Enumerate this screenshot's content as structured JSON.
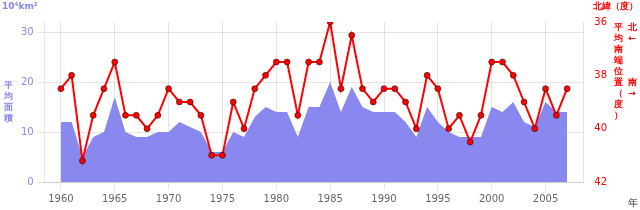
{
  "chart_data": {
    "type": "line",
    "xlabel": "年",
    "ylabel": "平均面積",
    "y2label": "平均南端位置（度）",
    "annotations": [
      "10⁴km²",
      "北緯（度）",
      "北←   南→"
    ],
    "x": [
      1960,
      1961,
      1962,
      1963,
      1964,
      1965,
      1966,
      1967,
      1968,
      1969,
      1970,
      1971,
      1972,
      1973,
      1974,
      1975,
      1976,
      1977,
      1978,
      1979,
      1980,
      1981,
      1982,
      1983,
      1984,
      1985,
      1986,
      1987,
      1988,
      1989,
      1990,
      1991,
      1992,
      1993,
      1994,
      1995,
      1996,
      1997,
      1998,
      1999,
      2000,
      2001,
      2002,
      2003,
      2004,
      2005,
      2006,
      2007
    ],
    "series": [
      {
        "type": "area",
        "color": "#8888ee",
        "values": [
          12,
          12,
          5,
          9,
          10,
          17,
          10,
          9,
          9,
          10,
          10,
          12,
          11,
          10,
          6,
          6,
          10,
          9,
          13,
          15,
          14,
          14,
          9,
          15,
          15,
          20,
          14,
          19,
          15,
          14,
          14,
          14,
          12,
          9,
          15,
          12,
          10,
          9,
          9,
          9,
          15,
          14,
          16,
          12,
          11,
          16,
          14,
          14
        ]
      },
      {
        "type": "line",
        "color": "#ff0000",
        "axis": "y2",
        "marker": "circle",
        "values": [
          38.5,
          38.0,
          41.2,
          39.5,
          38.5,
          37.5,
          39.5,
          39.5,
          40.0,
          39.5,
          38.5,
          39.0,
          39.0,
          39.5,
          41.0,
          41.0,
          39.0,
          40.0,
          38.5,
          38.0,
          37.5,
          37.5,
          39.5,
          37.5,
          37.5,
          36.0,
          38.5,
          36.5,
          38.5,
          39.0,
          38.5,
          38.5,
          39.0,
          40.0,
          38.0,
          38.5,
          40.0,
          39.5,
          40.5,
          39.5,
          37.5,
          37.5,
          38.0,
          39.0,
          40.0,
          38.5,
          39.5,
          38.5
        ]
      }
    ],
    "xlim": [
      1958.5,
      2008.5
    ],
    "xticks": [
      1960,
      1965,
      1970,
      1975,
      1980,
      1985,
      1990,
      1995,
      2000,
      2005
    ],
    "ylim": [
      0,
      32
    ],
    "yticks": [
      0,
      10,
      20,
      30
    ],
    "y2lim": [
      42,
      36
    ],
    "y2ticks": [
      36,
      38,
      40,
      42
    ],
    "grid": true
  }
}
